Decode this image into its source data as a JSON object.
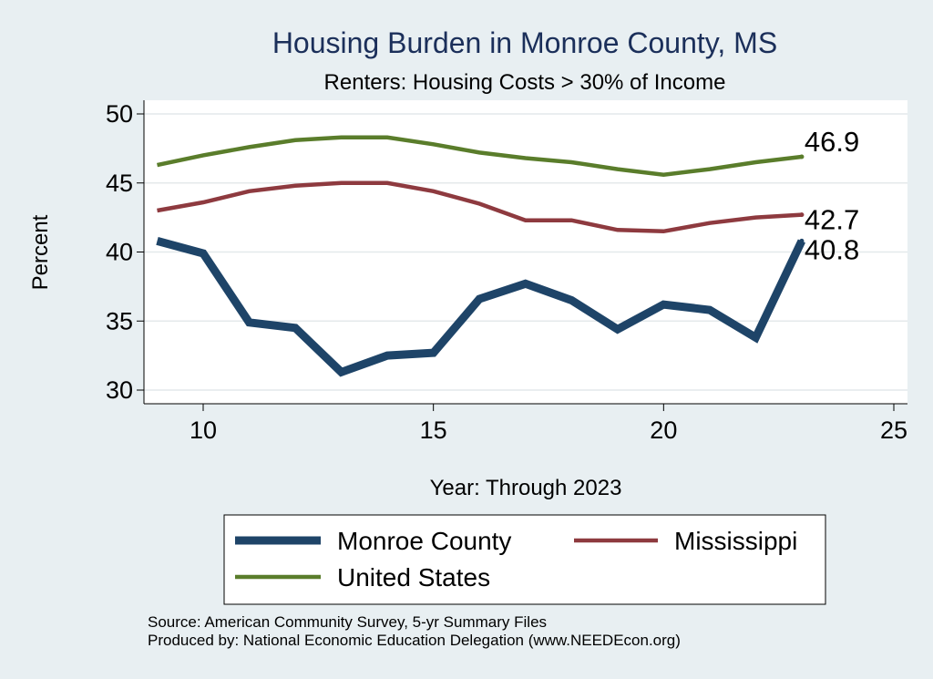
{
  "chart_data": {
    "type": "line",
    "title": "Housing Burden in Monroe County, MS",
    "subtitle": "Renters: Housing Costs > 30% of Income",
    "xlabel": "Year: Through 2023",
    "ylabel": "Percent",
    "xlim": [
      9,
      25
    ],
    "ylim": [
      30,
      50
    ],
    "x_ticks": [
      10,
      15,
      20,
      25
    ],
    "y_ticks": [
      30,
      35,
      40,
      45,
      50
    ],
    "x": [
      9,
      10,
      11,
      12,
      13,
      14,
      15,
      16,
      17,
      18,
      19,
      20,
      21,
      22,
      23
    ],
    "series": [
      {
        "name": "Monroe County",
        "color": "#1e4468",
        "values": [
          40.8,
          39.9,
          34.9,
          34.5,
          31.3,
          32.5,
          32.7,
          36.6,
          37.7,
          36.5,
          34.4,
          36.2,
          35.8,
          33.8,
          40.8
        ],
        "end_label": "40.8"
      },
      {
        "name": "Mississippi",
        "color": "#8e3a3f",
        "values": [
          43.0,
          43.6,
          44.4,
          44.8,
          45.0,
          45.0,
          44.4,
          43.5,
          42.3,
          42.3,
          41.6,
          41.5,
          42.1,
          42.5,
          42.7
        ],
        "end_label": "42.7"
      },
      {
        "name": "United States",
        "color": "#5a7d2b",
        "values": [
          46.3,
          47.0,
          47.6,
          48.1,
          48.3,
          48.3,
          47.8,
          47.2,
          46.8,
          46.5,
          46.0,
          45.6,
          46.0,
          46.5,
          46.9
        ],
        "end_label": "46.9"
      }
    ],
    "legend": [
      "Monroe County",
      "Mississippi",
      "United States"
    ],
    "legend_position": "bottom",
    "grid": true
  },
  "source_lines": [
    "Source: American Community Survey, 5-yr Summary Files",
    "Produced by: National Economic Education Delegation (www.NEEDEcon.org)"
  ]
}
